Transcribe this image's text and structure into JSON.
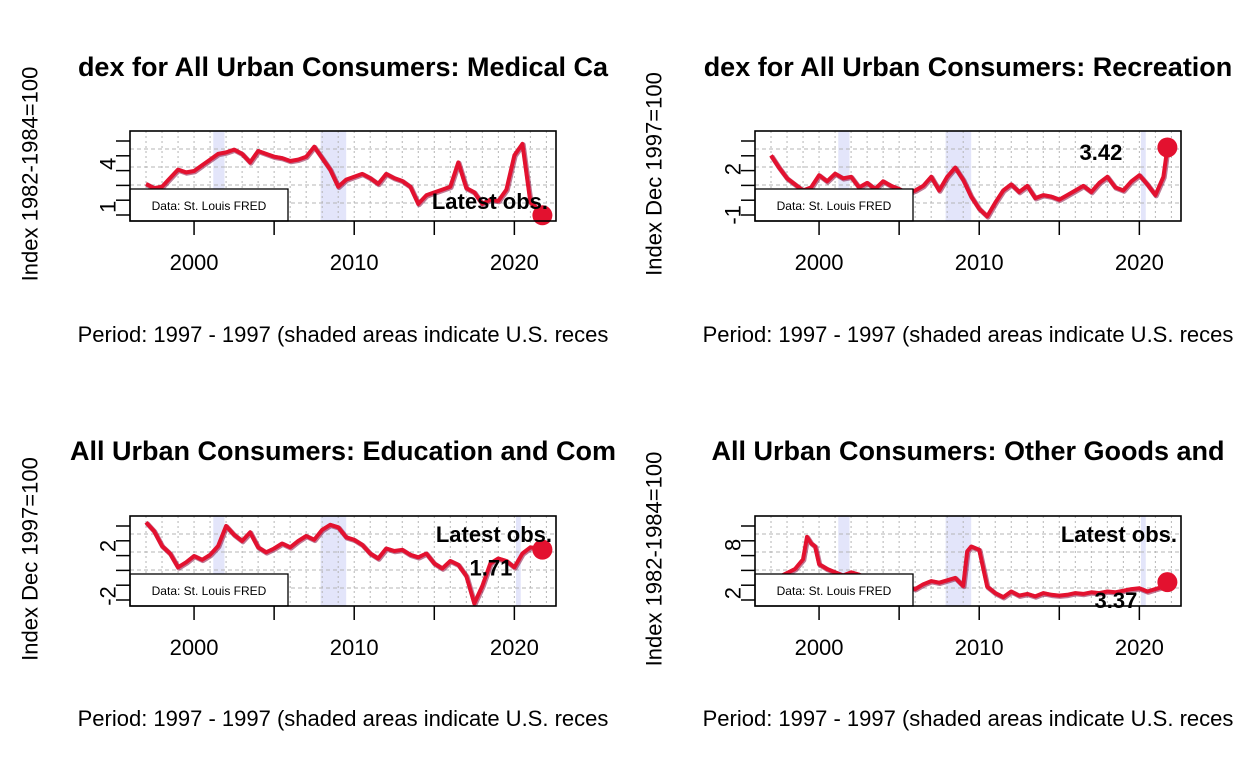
{
  "style": {
    "line_color": "#e3112f",
    "line_shadow": "#8b0a3d",
    "recession_fill": "#e3e5fa",
    "grid_color": "#b5b5b5"
  },
  "chart_data": [
    {
      "type": "line",
      "title": "dex for All Urban Consumers: Medical Ca",
      "xlabel": "Period: 1997 - 1997 (shaded areas indicate U.S. reces",
      "ylabel": "Index 1982-1984=100",
      "xlim": [
        1996,
        2022.6
      ],
      "ylim": [
        0,
        6.3
      ],
      "xticks": [
        2000,
        2010,
        2020
      ],
      "yticks": [
        1,
        4
      ],
      "grid": true,
      "recessions": [
        [
          2001.2,
          2001.9
        ],
        [
          2007.9,
          2009.5
        ]
      ],
      "source_note": "Data: St. Louis FRED",
      "annotation": "Latest obs.",
      "latest_point": {
        "x": 2021.75,
        "y": 0.4
      },
      "series": [
        {
          "x": [
            1997.0,
            1997.5,
            1998.0,
            1998.5,
            1999.0,
            1999.5,
            2000.0,
            2000.5,
            2001.0,
            2001.5,
            2002.0,
            2002.5,
            2003.0,
            2003.5,
            2004.0,
            2004.5,
            2005.0,
            2005.5,
            2006.0,
            2006.5,
            2007.0,
            2007.5,
            2008.0,
            2008.5,
            2009.0,
            2009.5,
            2010.0,
            2010.5,
            2011.0,
            2011.5,
            2012.0,
            2012.5,
            2013.0,
            2013.5,
            2014.0,
            2014.5,
            2015.0,
            2015.5,
            2016.0,
            2016.5,
            2017.0,
            2017.5,
            2018.0,
            2018.5,
            2019.0,
            2019.5,
            2020.0,
            2020.5,
            2021.0,
            2021.5,
            2021.75
          ],
          "values": [
            2.6,
            2.3,
            2.4,
            3.0,
            3.6,
            3.4,
            3.5,
            3.9,
            4.3,
            4.7,
            4.8,
            5.0,
            4.7,
            4.1,
            4.9,
            4.7,
            4.5,
            4.4,
            4.2,
            4.3,
            4.5,
            5.2,
            4.4,
            3.6,
            2.4,
            2.9,
            3.1,
            3.3,
            3.0,
            2.6,
            3.3,
            3.0,
            2.8,
            2.4,
            1.2,
            1.8,
            2.0,
            2.2,
            2.4,
            4.1,
            2.3,
            2.0,
            1.2,
            1.5,
            1.4,
            2.2,
            4.6,
            5.4,
            1.3,
            0.8,
            0.4
          ]
        }
      ]
    },
    {
      "type": "line",
      "title": "dex for All Urban Consumers: Recreation",
      "xlabel": "Period: 1997 - 1997 (shaded areas indicate U.S. reces",
      "ylabel": "Index Dec 1997=100",
      "xlim": [
        1996,
        2022.6
      ],
      "ylim": [
        -1.4,
        4.5
      ],
      "xticks": [
        2000,
        2010,
        2020
      ],
      "yticks": [
        -1,
        2
      ],
      "grid": true,
      "recessions": [
        [
          2001.2,
          2001.9
        ],
        [
          2007.9,
          2009.5
        ],
        [
          2020.1,
          2020.4
        ]
      ],
      "source_note": "Data: St. Louis FRED",
      "annotation": "3.42",
      "latest_point": {
        "x": 2021.75,
        "y": 3.42
      },
      "series": [
        {
          "x": [
            1997.0,
            1997.5,
            1998.0,
            1998.5,
            1999.0,
            1999.5,
            2000.0,
            2000.5,
            2001.0,
            2001.5,
            2002.0,
            2002.5,
            2003.0,
            2003.5,
            2004.0,
            2004.5,
            2005.0,
            2005.5,
            2006.0,
            2006.5,
            2007.0,
            2007.5,
            2008.0,
            2008.5,
            2009.0,
            2009.5,
            2010.0,
            2010.5,
            2011.0,
            2011.5,
            2012.0,
            2012.5,
            2013.0,
            2013.5,
            2014.0,
            2014.5,
            2015.0,
            2015.5,
            2016.0,
            2016.5,
            2017.0,
            2017.5,
            2018.0,
            2018.5,
            2019.0,
            2019.5,
            2020.0,
            2020.5,
            2021.0,
            2021.5,
            2021.75
          ],
          "values": [
            2.9,
            2.1,
            1.4,
            1.0,
            0.6,
            0.8,
            1.6,
            1.2,
            1.7,
            1.4,
            1.5,
            0.8,
            1.1,
            0.7,
            1.2,
            0.9,
            0.7,
            0.4,
            0.6,
            0.9,
            1.5,
            0.6,
            1.5,
            2.1,
            1.3,
            0.2,
            -0.6,
            -1.1,
            -0.2,
            0.6,
            1.0,
            0.5,
            0.9,
            0.1,
            0.3,
            0.2,
            0.0,
            0.3,
            0.6,
            0.9,
            0.5,
            1.1,
            1.5,
            0.8,
            0.6,
            1.2,
            1.6,
            1.0,
            0.3,
            1.5,
            3.42
          ]
        }
      ]
    },
    {
      "type": "line",
      "title": "All Urban Consumers: Education and Com",
      "xlabel": "Period: 1997 - 1997 (shaded areas indicate U.S. reces",
      "ylabel": "Index Dec 1997=100",
      "xlim": [
        1996,
        2022.6
      ],
      "ylim": [
        -2.8,
        4.4
      ],
      "xticks": [
        2000,
        2010,
        2020
      ],
      "yticks": [
        -2,
        2
      ],
      "grid": true,
      "recessions": [
        [
          2001.2,
          2001.9
        ],
        [
          2007.9,
          2009.5
        ],
        [
          2020.1,
          2020.4
        ]
      ],
      "source_note": "Data: St. Louis FRED",
      "annotation": "Latest obs.",
      "annotation_value": "1.71",
      "latest_point": {
        "x": 2021.75,
        "y": 1.71
      },
      "series": [
        {
          "x": [
            1997.0,
            1997.5,
            1998.0,
            1998.5,
            1999.0,
            1999.5,
            2000.0,
            2000.5,
            2001.0,
            2001.5,
            2002.0,
            2002.5,
            2003.0,
            2003.5,
            2004.0,
            2004.5,
            2005.0,
            2005.5,
            2006.0,
            2006.5,
            2007.0,
            2007.5,
            2008.0,
            2008.5,
            2009.0,
            2009.5,
            2010.0,
            2010.5,
            2011.0,
            2011.5,
            2012.0,
            2012.5,
            2013.0,
            2013.5,
            2014.0,
            2014.5,
            2015.0,
            2015.5,
            2016.0,
            2016.5,
            2017.0,
            2017.5,
            2018.0,
            2018.5,
            2019.0,
            2019.5,
            2020.0,
            2020.5,
            2021.0,
            2021.5,
            2021.75
          ],
          "values": [
            3.9,
            3.2,
            2.0,
            1.4,
            0.3,
            0.7,
            1.2,
            0.9,
            1.3,
            2.0,
            3.6,
            2.9,
            2.4,
            3.1,
            1.9,
            1.5,
            1.8,
            2.2,
            1.9,
            2.4,
            2.8,
            2.5,
            3.3,
            3.7,
            3.5,
            2.7,
            2.5,
            2.1,
            1.4,
            1.0,
            1.8,
            1.6,
            1.7,
            1.3,
            1.1,
            1.4,
            0.6,
            0.2,
            0.8,
            0.5,
            -0.4,
            -2.6,
            -1.2,
            0.6,
            1.0,
            0.8,
            0.3,
            1.4,
            1.9,
            1.8,
            1.71
          ]
        }
      ]
    },
    {
      "type": "line",
      "title": "All Urban Consumers: Other Goods and",
      "xlabel": "Period: 1997 - 1997 (shaded areas indicate U.S. reces",
      "ylabel": "Index 1982-1984=100",
      "xlim": [
        1996,
        2022.6
      ],
      "ylim": [
        0.4,
        11.6
      ],
      "xticks": [
        2000,
        2010,
        2020
      ],
      "yticks": [
        2,
        8
      ],
      "grid": true,
      "recessions": [
        [
          2001.2,
          2001.9
        ],
        [
          2007.9,
          2009.5
        ],
        [
          2020.1,
          2020.4
        ]
      ],
      "source_note": "Data: St. Louis FRED",
      "annotation": "Latest obs.",
      "annotation_value": "3.37",
      "latest_point": {
        "x": 2021.75,
        "y": 3.37
      },
      "series": [
        {
          "x": [
            1997.0,
            1997.5,
            1998.0,
            1998.5,
            1999.0,
            1999.25,
            1999.5,
            1999.75,
            2000.0,
            2000.5,
            2001.0,
            2001.5,
            2002.0,
            2002.5,
            2003.0,
            2003.5,
            2004.0,
            2004.5,
            2005.0,
            2005.5,
            2006.0,
            2006.5,
            2007.0,
            2007.5,
            2008.0,
            2008.5,
            2009.0,
            2009.25,
            2009.5,
            2010.0,
            2010.5,
            2011.0,
            2011.5,
            2012.0,
            2012.5,
            2013.0,
            2013.5,
            2014.0,
            2014.5,
            2015.0,
            2015.5,
            2016.0,
            2016.5,
            2017.0,
            2017.5,
            2018.0,
            2018.5,
            2019.0,
            2019.5,
            2020.0,
            2020.5,
            2021.0,
            2021.5,
            2021.75
          ],
          "values": [
            3.8,
            4.0,
            4.5,
            5.0,
            6.2,
            9.0,
            8.2,
            7.8,
            5.6,
            5.0,
            4.6,
            4.2,
            4.6,
            4.3,
            3.8,
            3.9,
            3.5,
            3.2,
            3.0,
            2.8,
            2.5,
            3.1,
            3.5,
            3.3,
            3.6,
            3.9,
            2.9,
            7.2,
            7.8,
            7.4,
            2.8,
            2.0,
            1.5,
            2.2,
            1.7,
            1.9,
            1.6,
            2.0,
            1.8,
            1.7,
            1.8,
            2.0,
            1.9,
            2.1,
            2.0,
            2.2,
            2.1,
            2.3,
            2.5,
            2.6,
            2.2,
            2.5,
            2.8,
            3.37
          ]
        }
      ]
    }
  ]
}
